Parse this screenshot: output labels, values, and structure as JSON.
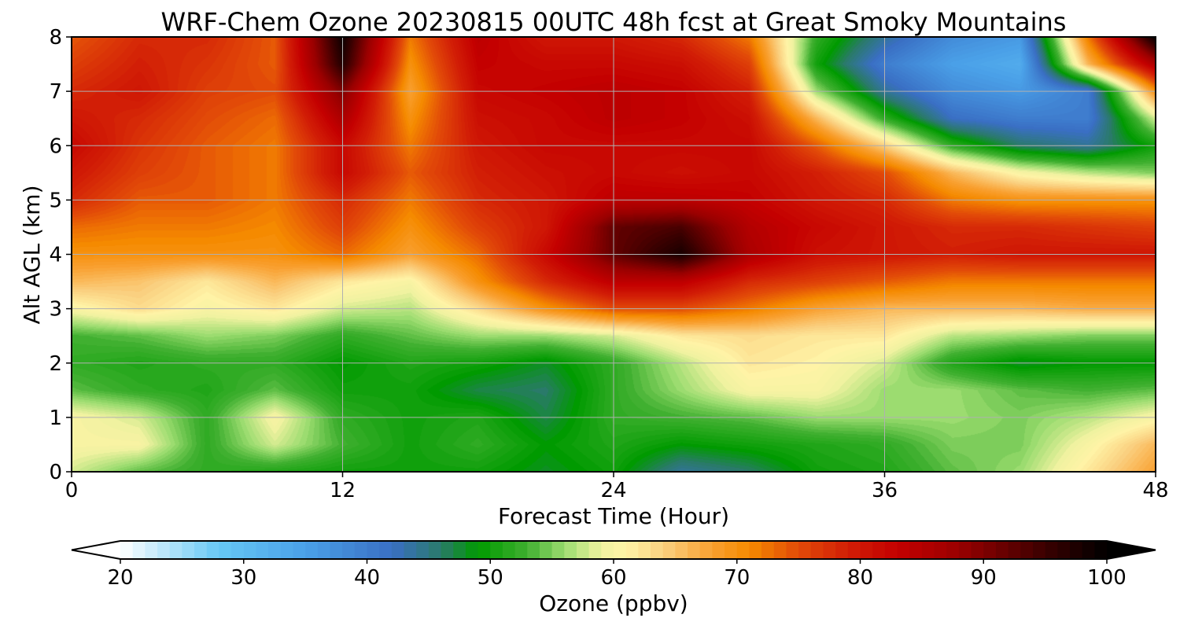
{
  "chart_data": {
    "type": "heatmap",
    "title": "WRF-Chem Ozone  20230815 00UTC 48h fcst at Great Smoky Mountains",
    "xlabel": "Forecast Time (Hour)",
    "ylabel": "Alt AGL (km)",
    "xlim": [
      0,
      48
    ],
    "ylim": [
      0,
      8
    ],
    "xticks": [
      0,
      12,
      24,
      36,
      48
    ],
    "yticks": [
      0,
      1,
      2,
      3,
      4,
      5,
      6,
      7,
      8
    ],
    "grid": true,
    "x": [
      0,
      3,
      6,
      9,
      12,
      15,
      18,
      21,
      24,
      27,
      30,
      33,
      36,
      39,
      42,
      45,
      48
    ],
    "y": [
      0,
      0.5,
      1,
      1.5,
      2,
      2.5,
      3,
      3.5,
      4,
      4.5,
      5,
      5.5,
      6,
      6.5,
      7,
      7.5,
      8
    ],
    "z": [
      [
        58,
        54,
        52,
        51,
        50,
        50,
        50,
        48,
        50,
        44,
        46,
        50,
        51,
        54,
        56,
        62,
        68
      ],
      [
        60,
        60,
        52,
        58,
        53,
        50,
        52,
        49,
        51,
        49,
        50,
        51,
        52,
        55,
        55,
        60,
        66
      ],
      [
        60,
        58,
        52,
        60,
        52,
        50,
        51,
        47,
        52,
        53,
        54,
        56,
        56,
        56,
        55,
        57,
        60
      ],
      [
        54,
        52,
        51,
        54,
        50,
        50,
        47,
        46,
        52,
        56,
        60,
        60,
        56,
        56,
        54,
        53,
        54
      ],
      [
        52,
        51,
        52,
        52,
        49,
        51,
        50,
        48,
        52,
        57,
        62,
        61,
        58,
        51,
        48,
        49,
        49
      ],
      [
        53,
        54,
        56,
        55,
        52,
        54,
        56,
        56,
        58,
        62,
        63,
        62,
        62,
        57,
        56,
        55,
        55
      ],
      [
        60,
        63,
        60,
        62,
        58,
        57,
        63,
        70,
        75,
        75,
        72,
        68,
        66,
        66,
        66,
        67,
        67
      ],
      [
        66,
        65,
        62,
        66,
        62,
        60,
        70,
        78,
        84,
        84,
        78,
        76,
        74,
        72,
        72,
        72,
        72
      ],
      [
        70,
        70,
        70,
        70,
        73,
        68,
        73,
        82,
        92,
        98,
        86,
        81,
        80,
        79,
        80,
        80,
        80
      ],
      [
        73,
        72,
        72,
        71,
        76,
        70,
        76,
        80,
        92,
        94,
        85,
        82,
        80,
        78,
        78,
        77,
        76
      ],
      [
        78,
        74,
        74,
        72,
        78,
        72,
        78,
        80,
        84,
        84,
        83,
        80,
        78,
        72,
        70,
        70,
        70
      ],
      [
        80,
        76,
        74,
        72,
        82,
        74,
        79,
        81,
        82,
        81,
        82,
        79,
        75,
        66,
        60,
        57,
        55
      ],
      [
        82,
        77,
        74,
        72,
        82,
        72,
        80,
        82,
        82,
        82,
        82,
        74,
        64,
        52,
        46,
        44,
        50
      ],
      [
        80,
        78,
        75,
        73,
        86,
        70,
        81,
        82,
        84,
        83,
        81,
        66,
        52,
        42,
        40,
        40,
        58
      ],
      [
        78,
        80,
        76,
        75,
        90,
        68,
        82,
        83,
        84,
        83,
        79,
        56,
        44,
        38,
        36,
        40,
        70
      ],
      [
        76,
        79,
        77,
        74,
        97,
        70,
        83,
        82,
        82,
        81,
        76,
        50,
        40,
        35,
        33,
        66,
        86
      ],
      [
        74,
        78,
        78,
        74,
        99,
        72,
        84,
        80,
        80,
        78,
        72,
        52,
        44,
        38,
        36,
        72,
        100
      ]
    ],
    "colorbar": {
      "label": "Ozone  (ppbv)",
      "min": 20,
      "max": 100,
      "extend": "both",
      "ticks": [
        20,
        30,
        40,
        50,
        60,
        70,
        80,
        90,
        100
      ]
    },
    "colormap": [
      [
        20,
        "#ffffff"
      ],
      [
        28,
        "#66c8f5"
      ],
      [
        35,
        "#4aa0e8"
      ],
      [
        42,
        "#3a6fc4"
      ],
      [
        46,
        "#2a7a6a"
      ],
      [
        49,
        "#009a00"
      ],
      [
        53,
        "#40b030"
      ],
      [
        56,
        "#9cdc70"
      ],
      [
        59,
        "#f0f2a0"
      ],
      [
        61,
        "#fff3a6"
      ],
      [
        64,
        "#fad080"
      ],
      [
        68,
        "#f9a030"
      ],
      [
        71,
        "#f58a00"
      ],
      [
        75,
        "#e24a08"
      ],
      [
        79,
        "#d21e06"
      ],
      [
        83,
        "#c40000"
      ],
      [
        88,
        "#9a0000"
      ],
      [
        95,
        "#3a0000"
      ],
      [
        100,
        "#000000"
      ]
    ]
  }
}
